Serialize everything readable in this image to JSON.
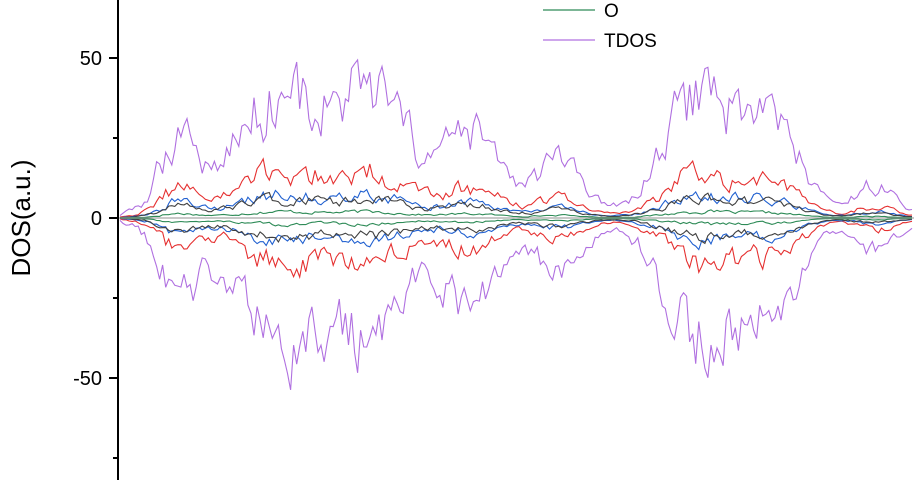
{
  "chart_data": {
    "type": "line",
    "title": "",
    "xlabel": "",
    "ylabel": "DOS(a.u.)",
    "ylim": [
      -82,
      67
    ],
    "xlim": [
      0,
      1
    ],
    "grid": false,
    "legend_position": "top-right",
    "y_ticks": [
      {
        "value": 50,
        "label": "50"
      },
      {
        "value": 0,
        "label": "0"
      },
      {
        "value": -50,
        "label": "-50"
      }
    ],
    "series": [
      {
        "name": "O",
        "color": "#2e8b57",
        "amplitude": 3,
        "spin_polarized": true
      },
      {
        "name": "TDOS",
        "color": "#b070e0",
        "amplitude": 60,
        "spin_polarized": true
      },
      {
        "color": "#e53030",
        "amplitude": 22,
        "spin_polarized": true
      },
      {
        "color": "#2060d0",
        "amplitude": 11,
        "spin_polarized": true
      },
      {
        "color": "#404040",
        "amplitude": 9,
        "spin_polarized": true
      }
    ]
  }
}
